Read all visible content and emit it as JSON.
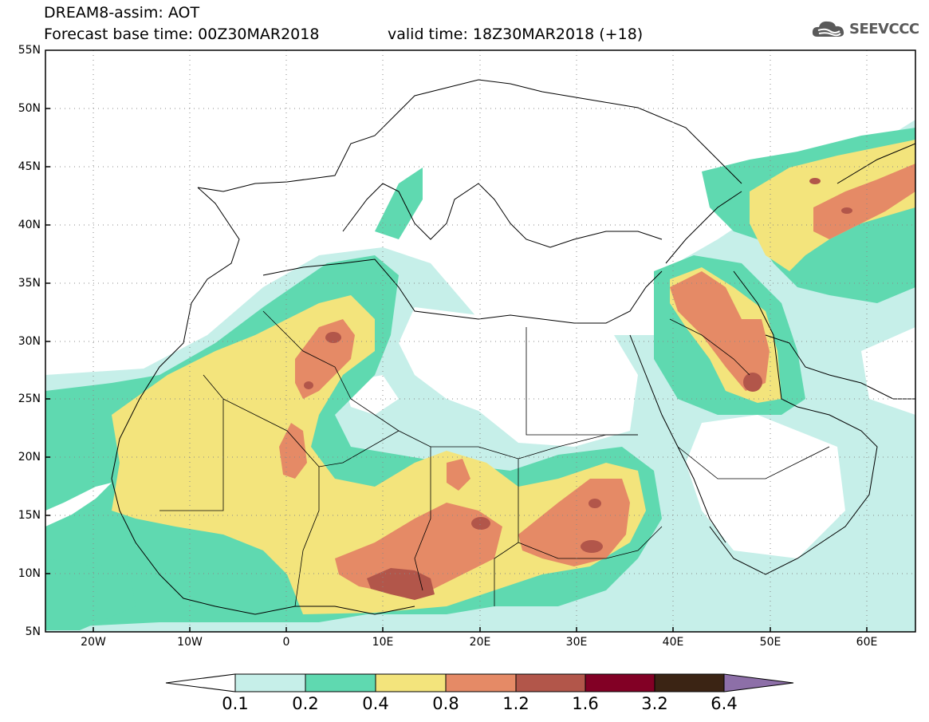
{
  "header": {
    "line1": "DREAM8-assim: AOT",
    "line2": "Forecast base time: 00Z30MAR2018",
    "valid": "valid time: 18Z30MAR2018 (+18)"
  },
  "logo": {
    "text": "SEEVCCC",
    "icon": "cloud-icon",
    "color": "#5a5a5a"
  },
  "map": {
    "lon_range": [
      -25,
      65
    ],
    "lat_range": [
      5,
      55
    ],
    "lat_labels": [
      "55N",
      "50N",
      "45N",
      "40N",
      "35N",
      "30N",
      "25N",
      "20N",
      "15N",
      "10N",
      "5N"
    ],
    "lon_labels": [
      "20W",
      "10W",
      "0",
      "10E",
      "20E",
      "30E",
      "40E",
      "50E",
      "60E"
    ],
    "grid": "dotted"
  },
  "legend": {
    "labels": [
      "0.1",
      "0.2",
      "0.4",
      "0.8",
      "1.2",
      "1.6",
      "3.2",
      "6.4"
    ],
    "colors": [
      "#ffffff",
      "#c6efe9",
      "#5fd9b0",
      "#f3e47c",
      "#e58a66",
      "#b2564a",
      "#820025",
      "#3b2414",
      "#8d6fa8"
    ]
  }
}
